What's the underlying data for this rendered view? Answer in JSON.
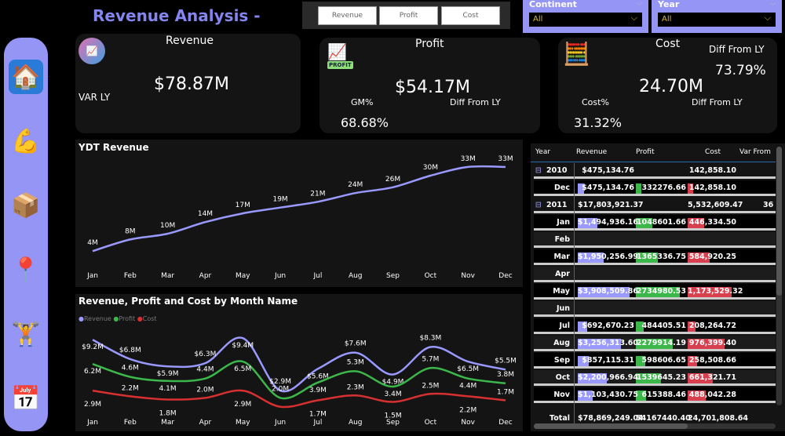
{
  "title": "Revenue Analysis -",
  "sidebar": {
    "items": [
      {
        "name": "home",
        "icon": "🏠"
      },
      {
        "name": "customer",
        "icon": "💪"
      },
      {
        "name": "returns",
        "icon": "📦"
      },
      {
        "name": "map",
        "icon": "📍"
      },
      {
        "name": "products",
        "icon": "🏋"
      },
      {
        "name": "calendar",
        "icon": "📅"
      }
    ]
  },
  "toggle_buttons": [
    "Revenue",
    "Profit",
    "Cost"
  ],
  "slicers": [
    {
      "label": "Continent",
      "value": "All"
    },
    {
      "label": "Year",
      "value": "All"
    }
  ],
  "cards": {
    "revenue": {
      "title": "Revenue",
      "value": "$78.87M",
      "var_label": "VAR LY"
    },
    "profit": {
      "title": "Profit",
      "value": "$54.17M",
      "gm_label": "GM%",
      "gm_value": "68.68%",
      "diff_label": "Diff From LY",
      "badge": "PROFIT"
    },
    "cost": {
      "title": "Cost",
      "value": "24.70M",
      "cost_label": "Cost%",
      "cost_value": "31.32%",
      "diff_label": "Diff From LY",
      "diff_value": "73.79%",
      "diff_label2": "Diff From LY"
    }
  },
  "colors": {
    "revenue": "#9999ff",
    "profit": "#3cb84a",
    "cost": "#d83030",
    "accent": "#9595f5"
  },
  "chart_data": [
    {
      "type": "line",
      "title": "YDT Revenue",
      "categories": [
        "Jan",
        "Feb",
        "Mar",
        "Apr",
        "May",
        "Jun",
        "Jul",
        "Aug",
        "Sep",
        "Oct",
        "Nov",
        "Dec"
      ],
      "values": [
        4,
        8,
        10,
        14,
        17,
        19,
        21,
        24,
        26,
        30,
        33,
        33
      ],
      "labels": [
        "4M",
        "8M",
        "10M",
        "14M",
        "17M",
        "19M",
        "21M",
        "24M",
        "26M",
        "30M",
        "33M",
        "33M"
      ],
      "unit": "M"
    },
    {
      "type": "line",
      "title": "Revenue, Profit and Cost by Month Name",
      "legend": "top-left",
      "categories": [
        "Jan",
        "Feb",
        "Mar",
        "Apr",
        "May",
        "Jun",
        "Jul",
        "Aug",
        "Sep",
        "Oct",
        "Nov",
        "Dec"
      ],
      "series": [
        {
          "name": "Revenue",
          "values": [
            9.2,
            6.8,
            5.9,
            6.3,
            9.4,
            2.9,
            5.6,
            7.6,
            4.9,
            8.3,
            6.5,
            5.5
          ],
          "labels": [
            "$9.2M",
            "$6.8M",
            "$5.9M",
            "$6.3M",
            "$9.4M",
            "$2.9M",
            "$5.6M",
            "$7.6M",
            "$4.9M",
            "$8.3M",
            "$6.5M",
            "$5.5M"
          ]
        },
        {
          "name": "Profit",
          "values": [
            6.2,
            4.6,
            4.1,
            4.4,
            6.5,
            2.0,
            3.9,
            5.3,
            3.4,
            5.7,
            4.4,
            3.8
          ],
          "labels": [
            "6.2M",
            "4.6M",
            "4.1M",
            "4.4M",
            "6.5M",
            "2.0M",
            "3.9M",
            "5.3M",
            "3.4M",
            "5.7M",
            "4.4M",
            "3.8M"
          ]
        },
        {
          "name": "Cost",
          "values": [
            2.9,
            2.2,
            1.8,
            2.0,
            2.9,
            0.9,
            1.7,
            2.3,
            1.5,
            2.5,
            2.2,
            1.7
          ],
          "labels": [
            "2.9M",
            "2.2M",
            "1.8M",
            "2.0M",
            "2.9M",
            "",
            "1.7M",
            "2.3M",
            "1.5M",
            "2.5M",
            "2.2M",
            "1.7M"
          ]
        }
      ]
    }
  ],
  "table": {
    "columns": [
      "Year",
      "Revenue",
      "Profit",
      "Cost",
      "Var From"
    ],
    "rows": [
      {
        "type": "group",
        "label": "2010",
        "revenue": "$475,134.76",
        "profit": "",
        "cost": "142,858.10",
        "var": ""
      },
      {
        "type": "month",
        "label": "Dec",
        "revenue": "$475,134.76",
        "profit": "332276.66",
        "cost": "142,858.10",
        "rv": 475134.76,
        "pv": 332276.66,
        "cv": 142858.1
      },
      {
        "type": "group",
        "label": "2011",
        "revenue": "$17,803,921.37",
        "profit": "",
        "cost": "5,532,609.47",
        "var": "36"
      },
      {
        "type": "month",
        "label": "Jan",
        "revenue": "$1,494,936.16",
        "profit": "1048601.66",
        "cost": "446,334.50",
        "rv": 1494936.16,
        "pv": 1048601.66,
        "cv": 446334.5
      },
      {
        "type": "month",
        "label": "Feb",
        "revenue": "",
        "profit": "",
        "cost": ""
      },
      {
        "type": "month",
        "label": "Mar",
        "revenue": "$1,950,256.99",
        "profit": "1365336.75",
        "cost": "584,920.25",
        "rv": 1950256.99,
        "pv": 1365336.75,
        "cv": 584920.25
      },
      {
        "type": "month",
        "label": "Apr",
        "revenue": "",
        "profit": "",
        "cost": ""
      },
      {
        "type": "month",
        "label": "May",
        "revenue": "$3,908,509.86",
        "profit": "2734980.53",
        "cost": "1,173,529.32",
        "rv": 3908509.86,
        "pv": 2734980.53,
        "cv": 1173529.32
      },
      {
        "type": "month",
        "label": "Jun",
        "revenue": "",
        "profit": "",
        "cost": ""
      },
      {
        "type": "month",
        "label": "Jul",
        "revenue": "$692,670.23",
        "profit": "484405.51",
        "cost": "208,264.72",
        "rv": 692670.23,
        "pv": 484405.51,
        "cv": 208264.72
      },
      {
        "type": "month",
        "label": "Aug",
        "revenue": "$3,256,313.60",
        "profit": "2279914.19",
        "cost": "976,399.40",
        "rv": 3256313.6,
        "pv": 2279914.19,
        "cv": 976399.4
      },
      {
        "type": "month",
        "label": "Sep",
        "revenue": "$857,115.31",
        "profit": "598606.65",
        "cost": "258,508.66",
        "rv": 857115.31,
        "pv": 598606.65,
        "cv": 258508.66
      },
      {
        "type": "month",
        "label": "Oct",
        "revenue": "$2,200,966.94",
        "profit": "1539645.23",
        "cost": "661,321.71",
        "rv": 2200966.94,
        "pv": 1539645.23,
        "cv": 661321.71
      },
      {
        "type": "month",
        "label": "Nov",
        "revenue": "$1,103,430.75",
        "profit": "615388.46",
        "cost": "488,042.28",
        "rv": 1103430.75,
        "pv": 615388.46,
        "cv": 488042.28
      }
    ],
    "total": {
      "label": "Total",
      "revenue": "$78,869,249.04",
      "profit": "54167440.40",
      "cost": "24,701,808.64"
    }
  }
}
